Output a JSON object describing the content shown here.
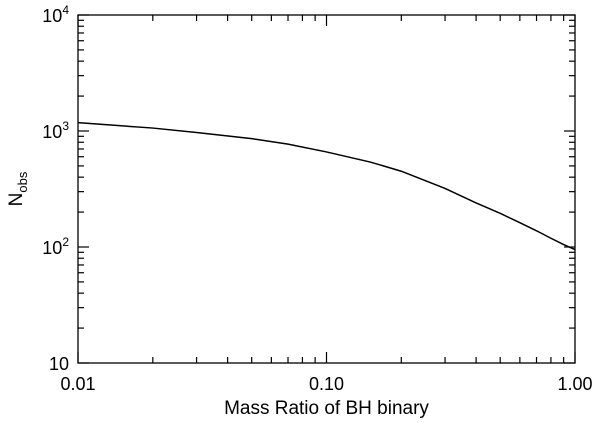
{
  "chart_data": {
    "type": "line",
    "title": "",
    "xlabel": "Mass Ratio of BH binary",
    "ylabel": {
      "base": "N",
      "subscript": "obs"
    },
    "xscale": "log",
    "yscale": "log",
    "xlim": [
      0.01,
      1.0
    ],
    "ylim": [
      10,
      10000
    ],
    "grid": false,
    "legend": "none",
    "x_ticks": [
      {
        "value": 0.01,
        "label": "0.01"
      },
      {
        "value": 0.1,
        "label": "0.10"
      },
      {
        "value": 1.0,
        "label": "1.00"
      }
    ],
    "y_ticks": [
      {
        "value": 10,
        "label": "10",
        "base": "10",
        "exp": ""
      },
      {
        "value": 100,
        "label": "10^2",
        "base": "10",
        "exp": "2"
      },
      {
        "value": 1000,
        "label": "10^3",
        "base": "10",
        "exp": "3"
      },
      {
        "value": 10000,
        "label": "10^4",
        "base": "10",
        "exp": "4"
      }
    ],
    "series": [
      {
        "color": "#000000",
        "points": [
          {
            "x": 0.01,
            "y": 1180
          },
          {
            "x": 0.02,
            "y": 1060
          },
          {
            "x": 0.03,
            "y": 970
          },
          {
            "x": 0.05,
            "y": 860
          },
          {
            "x": 0.07,
            "y": 770
          },
          {
            "x": 0.1,
            "y": 660
          },
          {
            "x": 0.15,
            "y": 540
          },
          {
            "x": 0.2,
            "y": 450
          },
          {
            "x": 0.3,
            "y": 320
          },
          {
            "x": 0.4,
            "y": 240
          },
          {
            "x": 0.5,
            "y": 195
          },
          {
            "x": 0.6,
            "y": 162
          },
          {
            "x": 0.7,
            "y": 138
          },
          {
            "x": 0.8,
            "y": 119
          },
          {
            "x": 0.9,
            "y": 105
          },
          {
            "x": 1.0,
            "y": 95
          }
        ]
      }
    ]
  }
}
